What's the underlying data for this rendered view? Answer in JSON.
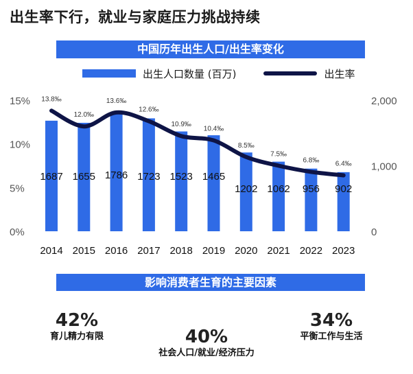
{
  "title": "出生率下行，就业与家庭压力挑战持续",
  "chart_banner": "中国历年出生人口/出生率变化",
  "legend": {
    "bar_label": "出生人口数量 (百万)",
    "line_label": "出生率"
  },
  "colors": {
    "bar": "#2f6be6",
    "line": "#0e1446",
    "banner": "#2f6be6"
  },
  "chart_data": {
    "type": "bar+line",
    "categories": [
      "2014",
      "2015",
      "2016",
      "2017",
      "2018",
      "2019",
      "2020",
      "2021",
      "2022",
      "2023"
    ],
    "series": [
      {
        "name": "出生人口数量 (百万)",
        "type": "bar",
        "axis": "right",
        "values": [
          1687,
          1655,
          1786,
          1723,
          1523,
          1465,
          1202,
          1062,
          956,
          902
        ],
        "labels": [
          "1687",
          "1655",
          "1786",
          "1723",
          "1523",
          "1465",
          "1202",
          "1062",
          "956",
          "902"
        ]
      },
      {
        "name": "出生率",
        "type": "line",
        "axis": "left",
        "values": [
          13.8,
          12.0,
          13.6,
          12.6,
          10.9,
          10.4,
          8.5,
          7.5,
          6.8,
          6.4
        ],
        "labels": [
          "13.8‰",
          "12.0‰",
          "13.6‰",
          "12.6‰",
          "10.9‰",
          "10.4‰",
          "8.5‰",
          "7.5‰",
          "6.8‰",
          "6.4‰"
        ]
      }
    ],
    "left_axis": {
      "ticks": [
        "0%",
        "5%",
        "10%",
        "15%"
      ],
      "tick_values": [
        0,
        5,
        10,
        15
      ],
      "range": [
        0,
        15
      ]
    },
    "right_axis": {
      "ticks": [
        "0",
        "1,000",
        "2,000"
      ],
      "tick_values": [
        0,
        1000,
        2000
      ],
      "range": [
        0,
        2000
      ]
    }
  },
  "factors_banner": "影响消费者生育的主要因素",
  "factors": [
    {
      "pct": "42%",
      "label": "育儿精力有限"
    },
    {
      "pct": "40%",
      "label": "社会人口/就业/经济压力"
    },
    {
      "pct": "34%",
      "label": "平衡工作与生活"
    }
  ]
}
